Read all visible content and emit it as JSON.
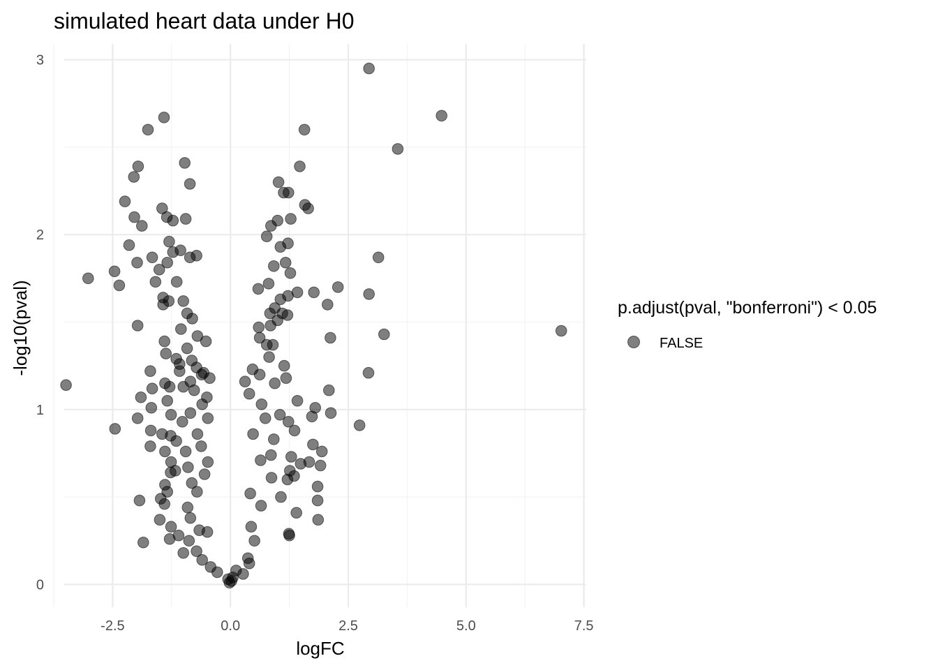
{
  "chart_data": {
    "type": "scatter",
    "title": "simulated heart data under H0",
    "xlabel": "logFC",
    "ylabel": "-log10(pval)",
    "xlim": [
      -3.75,
      7.55
    ],
    "ylim": [
      -0.13,
      3.09
    ],
    "x_ticks": [
      -2.5,
      0.0,
      2.5,
      5.0,
      7.5
    ],
    "x_tick_labels": [
      "-2.5",
      "0.0",
      "2.5",
      "5.0",
      "7.5"
    ],
    "y_ticks": [
      0,
      1,
      2,
      3
    ],
    "y_tick_labels": [
      "0",
      "1",
      "2",
      "3"
    ],
    "grid": true,
    "legend": {
      "title": "p.adjust(pval, \"bonferroni\") < 0.05",
      "position": "right",
      "entries": [
        "FALSE"
      ]
    },
    "point_color": "#000000",
    "point_alpha": 0.5,
    "series": [
      {
        "name": "FALSE",
        "points": [
          [
            2.94,
            2.95
          ],
          [
            4.48,
            2.68
          ],
          [
            -1.41,
            2.67
          ],
          [
            -1.75,
            2.6
          ],
          [
            1.57,
            2.6
          ],
          [
            3.55,
            2.49
          ],
          [
            -0.97,
            2.41
          ],
          [
            -1.96,
            2.39
          ],
          [
            1.47,
            2.39
          ],
          [
            -2.05,
            2.33
          ],
          [
            1.02,
            2.3
          ],
          [
            -0.86,
            2.29
          ],
          [
            1.23,
            2.24
          ],
          [
            1.13,
            2.24
          ],
          [
            -2.24,
            2.19
          ],
          [
            1.58,
            2.17
          ],
          [
            1.65,
            2.15
          ],
          [
            -1.45,
            2.15
          ],
          [
            -1.35,
            2.1
          ],
          [
            -2.04,
            2.1
          ],
          [
            1.0,
            2.08
          ],
          [
            1.28,
            2.09
          ],
          [
            -0.95,
            2.09
          ],
          [
            -1.88,
            2.05
          ],
          [
            0.86,
            2.05
          ],
          [
            -1.22,
            2.08
          ],
          [
            0.77,
            1.99
          ],
          [
            1.06,
            1.93
          ],
          [
            1.22,
            1.95
          ],
          [
            -2.15,
            1.94
          ],
          [
            -1.3,
            1.96
          ],
          [
            -1.22,
            1.9
          ],
          [
            -1.06,
            1.91
          ],
          [
            3.14,
            1.87
          ],
          [
            -0.72,
            1.88
          ],
          [
            -1.66,
            1.87
          ],
          [
            -1.51,
            1.8
          ],
          [
            -1.34,
            1.84
          ],
          [
            -0.86,
            1.87
          ],
          [
            -1.98,
            1.84
          ],
          [
            0.92,
            1.82
          ],
          [
            1.17,
            1.84
          ],
          [
            1.27,
            1.78
          ],
          [
            -2.46,
            1.79
          ],
          [
            -3.02,
            1.75
          ],
          [
            -1.14,
            1.73
          ],
          [
            -1.59,
            1.73
          ],
          [
            0.81,
            1.72
          ],
          [
            -2.36,
            1.71
          ],
          [
            2.28,
            1.7
          ],
          [
            0.59,
            1.69
          ],
          [
            1.42,
            1.67
          ],
          [
            1.77,
            1.67
          ],
          [
            2.94,
            1.66
          ],
          [
            1.06,
            1.63
          ],
          [
            -1.43,
            1.64
          ],
          [
            -1.31,
            1.62
          ],
          [
            -1.0,
            1.62
          ],
          [
            1.22,
            1.65
          ],
          [
            2.06,
            1.6
          ],
          [
            -1.43,
            1.6
          ],
          [
            0.94,
            1.58
          ],
          [
            1.1,
            1.55
          ],
          [
            0.84,
            1.55
          ],
          [
            -0.92,
            1.55
          ],
          [
            -0.81,
            1.52
          ],
          [
            1.0,
            1.51
          ],
          [
            1.21,
            1.54
          ],
          [
            -1.97,
            1.48
          ],
          [
            0.6,
            1.47
          ],
          [
            -1.05,
            1.46
          ],
          [
            0.85,
            1.48
          ],
          [
            3.26,
            1.43
          ],
          [
            7.02,
            1.45
          ],
          [
            -0.7,
            1.42
          ],
          [
            2.12,
            1.41
          ],
          [
            0.62,
            1.41
          ],
          [
            -1.4,
            1.39
          ],
          [
            -0.52,
            1.39
          ],
          [
            0.77,
            1.37
          ],
          [
            0.9,
            1.37
          ],
          [
            -0.92,
            1.35
          ],
          [
            -1.37,
            1.32
          ],
          [
            0.82,
            1.3
          ],
          [
            -1.15,
            1.29
          ],
          [
            -0.82,
            1.28
          ],
          [
            -1.08,
            1.26
          ],
          [
            1.14,
            1.25
          ],
          [
            0.47,
            1.23
          ],
          [
            -0.72,
            1.24
          ],
          [
            -0.57,
            1.21
          ],
          [
            -1.7,
            1.22
          ],
          [
            -1.08,
            1.22
          ],
          [
            2.93,
            1.21
          ],
          [
            -0.61,
            1.2
          ],
          [
            0.62,
            1.2
          ],
          [
            1.18,
            1.18
          ],
          [
            -1.39,
            1.15
          ],
          [
            -1.29,
            1.13
          ],
          [
            -0.85,
            1.16
          ],
          [
            -0.44,
            1.18
          ],
          [
            0.31,
            1.16
          ],
          [
            0.94,
            1.15
          ],
          [
            -3.49,
            1.14
          ],
          [
            -1.66,
            1.12
          ],
          [
            -1.0,
            1.13
          ],
          [
            -0.77,
            1.11
          ],
          [
            2.09,
            1.11
          ],
          [
            0.4,
            1.09
          ],
          [
            -0.5,
            1.07
          ],
          [
            -1.9,
            1.07
          ],
          [
            -1.34,
            1.05
          ],
          [
            1.42,
            1.05
          ],
          [
            -0.6,
            1.03
          ],
          [
            0.66,
            1.03
          ],
          [
            -1.68,
            1.01
          ],
          [
            1.8,
            1.01
          ],
          [
            -0.85,
            0.98
          ],
          [
            2.13,
            0.98
          ],
          [
            -1.26,
            0.97
          ],
          [
            1.05,
            0.97
          ],
          [
            -0.48,
            0.95
          ],
          [
            1.73,
            0.96
          ],
          [
            -1.97,
            0.95
          ],
          [
            0.74,
            0.95
          ],
          [
            -1.02,
            0.93
          ],
          [
            1.23,
            0.93
          ],
          [
            2.74,
            0.91
          ],
          [
            -2.45,
            0.89
          ],
          [
            1.36,
            0.88
          ],
          [
            -1.69,
            0.88
          ],
          [
            -1.45,
            0.86
          ],
          [
            -1.27,
            0.85
          ],
          [
            -0.7,
            0.86
          ],
          [
            0.48,
            0.86
          ],
          [
            -1.15,
            0.82
          ],
          [
            0.92,
            0.83
          ],
          [
            1.75,
            0.8
          ],
          [
            -1.7,
            0.79
          ],
          [
            -0.62,
            0.79
          ],
          [
            1.94,
            0.76
          ],
          [
            -1.39,
            0.76
          ],
          [
            -0.95,
            0.76
          ],
          [
            0.86,
            0.74
          ],
          [
            1.29,
            0.73
          ],
          [
            -1.26,
            0.7
          ],
          [
            -0.48,
            0.7
          ],
          [
            0.64,
            0.71
          ],
          [
            1.67,
            0.7
          ],
          [
            1.49,
            0.69
          ],
          [
            1.91,
            0.68
          ],
          [
            -0.9,
            0.67
          ],
          [
            -1.17,
            0.65
          ],
          [
            1.26,
            0.65
          ],
          [
            -0.55,
            0.63
          ],
          [
            -1.27,
            0.64
          ],
          [
            0.87,
            0.61
          ],
          [
            1.35,
            0.62
          ],
          [
            -0.82,
            0.58
          ],
          [
            -1.39,
            0.57
          ],
          [
            1.85,
            0.56
          ],
          [
            1.21,
            0.6
          ],
          [
            -1.34,
            0.53
          ],
          [
            -0.71,
            0.53
          ],
          [
            0.42,
            0.52
          ],
          [
            1.07,
            0.5
          ],
          [
            -1.48,
            0.49
          ],
          [
            -1.93,
            0.48
          ],
          [
            -1.4,
            0.46
          ],
          [
            1.85,
            0.48
          ],
          [
            -0.91,
            0.44
          ],
          [
            0.65,
            0.45
          ],
          [
            1.4,
            0.41
          ],
          [
            -1.5,
            0.37
          ],
          [
            -0.85,
            0.38
          ],
          [
            1.86,
            0.37
          ],
          [
            -1.26,
            0.33
          ],
          [
            -0.66,
            0.31
          ],
          [
            -0.49,
            0.3
          ],
          [
            0.44,
            0.33
          ],
          [
            1.24,
            0.29
          ],
          [
            -1.1,
            0.28
          ],
          [
            -1.29,
            0.26
          ],
          [
            -0.88,
            0.25
          ],
          [
            -1.85,
            0.24
          ],
          [
            0.51,
            0.25
          ],
          [
            1.25,
            0.28
          ],
          [
            -0.72,
            0.19
          ],
          [
            -1.0,
            0.18
          ],
          [
            0.37,
            0.15
          ],
          [
            -0.6,
            0.14
          ],
          [
            -0.42,
            0.1
          ],
          [
            0.4,
            0.12
          ],
          [
            0.12,
            0.08
          ],
          [
            -0.05,
            0.03
          ],
          [
            0.05,
            0.04
          ],
          [
            -0.02,
            0.01
          ],
          [
            0.02,
            0.02
          ],
          [
            0.27,
            0.06
          ],
          [
            -0.28,
            0.07
          ]
        ]
      }
    ]
  }
}
